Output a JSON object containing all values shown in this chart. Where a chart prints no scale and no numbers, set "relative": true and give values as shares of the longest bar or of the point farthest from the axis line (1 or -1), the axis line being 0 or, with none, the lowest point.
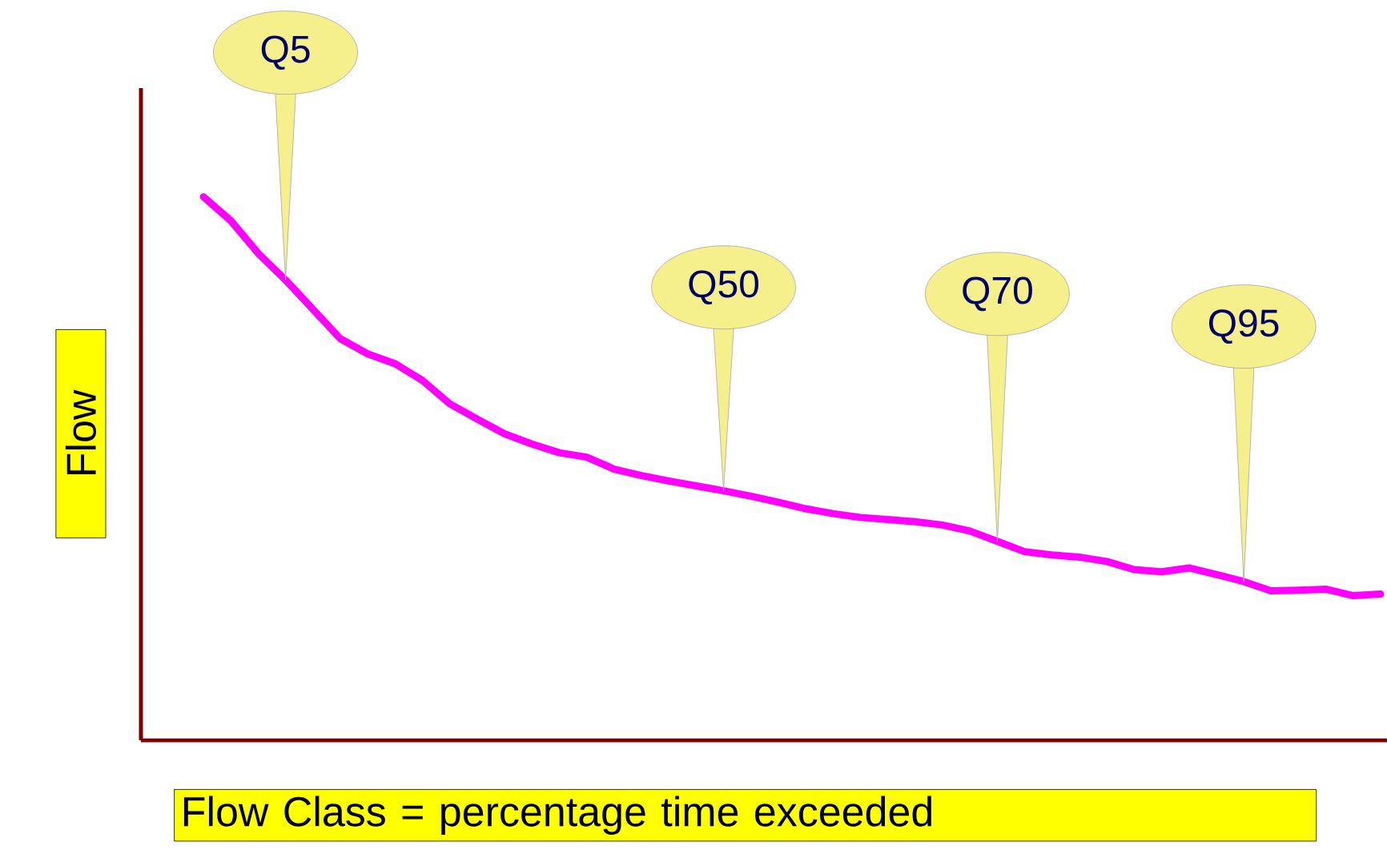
{
  "chart_data": {
    "type": "line",
    "relative": true,
    "xlabel": "Flow Class = percentage time exceeded",
    "ylabel": "Flow",
    "marker": "none",
    "line_style": "solid",
    "categories": [
      null,
      null,
      null,
      null,
      null,
      null,
      null,
      null,
      null,
      null,
      null,
      null,
      null,
      null,
      null,
      null,
      null,
      null,
      null,
      null,
      null,
      null,
      null,
      null,
      null,
      null,
      null,
      null,
      null,
      null,
      null,
      null,
      null,
      null,
      null,
      null,
      null,
      null,
      null,
      null,
      null,
      null,
      null,
      null
    ],
    "series": [
      {
        "color": "#ff00ff",
        "values": [
          1.0,
          0.956,
          0.896,
          0.847,
          0.793,
          0.739,
          0.711,
          0.693,
          0.662,
          0.619,
          0.591,
          0.564,
          0.545,
          0.529,
          0.521,
          0.499,
          0.487,
          0.477,
          0.468,
          0.459,
          0.449,
          0.438,
          0.426,
          0.417,
          0.41,
          0.406,
          0.402,
          0.396,
          0.385,
          0.366,
          0.347,
          0.341,
          0.337,
          0.329,
          0.314,
          0.31,
          0.317,
          0.305,
          0.292,
          0.275,
          0.276,
          0.278,
          0.266,
          0.269
        ]
      }
    ],
    "annotations": [
      "Q5",
      "Q50",
      "Q70",
      "Q95"
    ]
  }
}
